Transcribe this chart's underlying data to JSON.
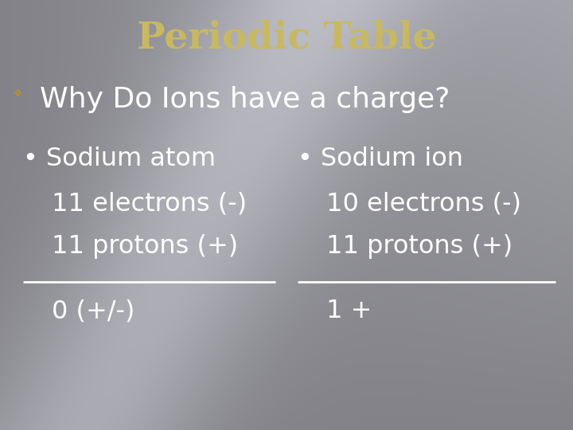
{
  "title": "Periodic Table",
  "title_color": "#C8B864",
  "title_fontsize": 34,
  "title_fontweight": "bold",
  "subtitle_text": "Why Do Ions have a charge?",
  "subtitle_color": "#FFFFFF",
  "subtitle_fontsize": 26,
  "body_color": "#FFFFFF",
  "body_fontsize": 23,
  "left_col": {
    "header": "• Sodium atom",
    "lines": [
      "11 electrons (-)",
      "11 protons (+)"
    ],
    "result": "0 (+/-)"
  },
  "right_col": {
    "header": "• Sodium ion",
    "lines": [
      "10 electrons (-)",
      "11 protons (+)"
    ],
    "result": "1 +"
  },
  "line_color": "#FFFFFF",
  "line_width": 2.0
}
